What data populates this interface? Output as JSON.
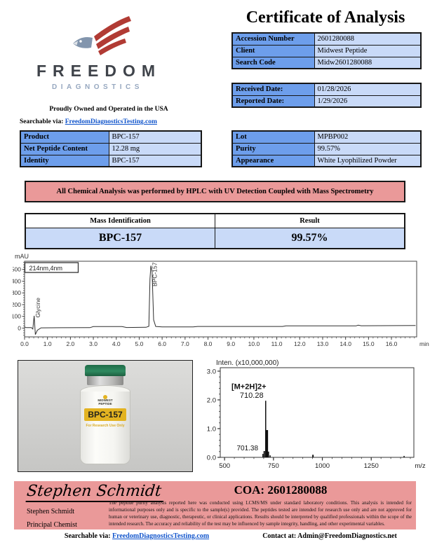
{
  "document": {
    "title": "Certificate of Analysis"
  },
  "header": {
    "brand": {
      "line1": "FREEDOM",
      "line2": "DIAGNOSTICS",
      "tagline": "Proudly Owned and Operated in the USA",
      "searchable_label": "Searchable via:",
      "searchable_link": "FreedomDiagnosticsTesting.com"
    }
  },
  "info_tables": {
    "accession": [
      {
        "label": "Accession Number",
        "value": "2601280088"
      },
      {
        "label": "Client",
        "value": "Midwest Peptide"
      },
      {
        "label": "Search Code",
        "value": "Midw2601280088"
      }
    ],
    "dates": [
      {
        "label": "Received Date:",
        "value": "01/28/2026"
      },
      {
        "label": "Reported Date:",
        "value": "1/29/2026"
      }
    ],
    "product": [
      {
        "label": "Product",
        "value": "BPC-157"
      },
      {
        "label": "Net Peptide Content",
        "value": "12.28 mg"
      },
      {
        "label": "Identity",
        "value": "BPC-157"
      }
    ],
    "lot": [
      {
        "label": "Lot",
        "value": "MPBP002"
      },
      {
        "label": "Purity",
        "value": "99.57%"
      },
      {
        "label": "Appearance",
        "value": "White Lyophilized Powder"
      }
    ]
  },
  "banner": {
    "text": "All Chemical Analysis was performed by HPLC with UV Detection Coupled with Mass Spectrometry"
  },
  "mass_table": {
    "col1_header": "Mass Identification",
    "col2_header": "Result",
    "row": {
      "identification": "BPC-157",
      "result": "99.57%"
    }
  },
  "chart_data": [
    {
      "type": "line",
      "name": "hplc-chromatogram",
      "detector_label": "214nm,4nm",
      "xlabel": "min",
      "ylabel": "mAU",
      "xlim": [
        0,
        17.1
      ],
      "ylim": [
        -75,
        570
      ],
      "x_major": 1,
      "x_minor": 0.2,
      "x_major_max": 16,
      "y_major": 100,
      "y_minor": 20,
      "y_label_min": 0,
      "y_label_max": 500,
      "trace": [
        [
          0,
          10
        ],
        [
          0.08,
          4
        ],
        [
          0.3,
          4
        ],
        [
          0.36,
          -8
        ],
        [
          0.42,
          105
        ],
        [
          0.47,
          -55
        ],
        [
          0.56,
          -18
        ],
        [
          0.72,
          2
        ],
        [
          1.6,
          3
        ],
        [
          2.85,
          4
        ],
        [
          3.0,
          13
        ],
        [
          4.25,
          13
        ],
        [
          4.45,
          5
        ],
        [
          5.3,
          7
        ],
        [
          5.42,
          15
        ],
        [
          5.47,
          420
        ],
        [
          5.51,
          532
        ],
        [
          5.56,
          480
        ],
        [
          5.63,
          70
        ],
        [
          5.72,
          14
        ],
        [
          6.0,
          10
        ],
        [
          7.35,
          10
        ],
        [
          7.55,
          14
        ],
        [
          9.5,
          14
        ],
        [
          11.25,
          14
        ],
        [
          11.4,
          19
        ],
        [
          14.45,
          19
        ],
        [
          14.55,
          25
        ],
        [
          14.68,
          20
        ],
        [
          17.05,
          22
        ]
      ],
      "peaks": [
        {
          "label": "Glycine",
          "rt": 0.42,
          "apex_mau": 105,
          "label_y_mau": 90
        },
        {
          "label": "BPC-157",
          "rt": 5.51,
          "apex_mau": 532,
          "label_y_mau": 355
        }
      ]
    },
    {
      "type": "stick",
      "name": "mass-spectrum",
      "title": "Inten. (x10,000,000)",
      "xlabel": "m/z",
      "xlim": [
        478,
        1468
      ],
      "ylim": [
        0,
        3.12
      ],
      "x_ticks": [
        500,
        750,
        1000,
        1250
      ],
      "x_minor": 50,
      "y_major": 1,
      "y_minor": 0.2,
      "peaks": [
        {
          "mz": 696,
          "intensity": 0.12,
          "w": 1.5
        },
        {
          "mz": 703,
          "intensity": 0.22,
          "w": 2
        },
        {
          "mz": 710.28,
          "intensity": 1.97,
          "w": 1.5
        },
        {
          "mz": 717,
          "intensity": 0.95,
          "w": 3
        },
        {
          "mz": 724,
          "intensity": 0.2,
          "w": 2
        },
        {
          "mz": 733,
          "intensity": 0.07,
          "w": 1.5
        },
        {
          "mz": 952,
          "intensity": 0.09,
          "w": 2
        },
        {
          "mz": 1418,
          "intensity": 0.05,
          "w": 1.5
        }
      ],
      "annotations": [
        {
          "text": "[M+2H]2+",
          "mz": 710.28,
          "at_intensity": 2.38,
          "dx": -24,
          "bold": true,
          "size": 11
        },
        {
          "text": "710.28",
          "mz": 710.28,
          "at_intensity": 2.07,
          "dx": -20,
          "bold": false,
          "size": 11
        },
        {
          "text": "701.38",
          "mz": 710.28,
          "at_intensity": 0.24,
          "dx": -26,
          "bold": false,
          "size": 10
        }
      ]
    }
  ],
  "vial": {
    "brand_top": "MIDWEST",
    "brand_bottom": "PEPTIDE",
    "product": "BPC-157",
    "subtext": "For Research Use Only"
  },
  "signature_block": {
    "signature": "Stephen Schmidt",
    "name": "Stephen Schmidt",
    "role": "Principal Chemist",
    "coa": "COA: 2601280088",
    "disclaimer": "The peptide purity analysis reported here was conducted using LCMS/MS under standard laboratory conditions. This analysis is intended for informational purposes only and is specific to the sample(s) provided. The peptides tested are intended for research use only and are not approved for human or veterinary use, diagnostic, therapeutic, or clinical applications. Results should be interpreted by qualified professionals within the scope of the intended research. The accuracy and reliability of the test may be influenced by sample integrity, handling, and other experimental variables."
  },
  "footer": {
    "searchable_label": "Searchable via:",
    "searchable_link": "FreedomDiagnosticsTesting.com",
    "contact": "Contact at: Admin@FreedomDiagnostics.net"
  },
  "icons": {
    "logo": "eagle-wing-logo"
  },
  "colors": {
    "table_label_bg": "#6d9eeb",
    "table_value_bg": "#c9daf8",
    "banner_bg": "#ea9999",
    "signature_bg": "#ea9999",
    "link_blue": "#1155cc",
    "logo_red": "#b13b34",
    "logo_gray_blue": "#8295ad",
    "logo_text_dark": "#3f434a",
    "logo_text_blue": "#97a8c0",
    "vial_cap_green": "#2a7d52",
    "vial_label_yellow": "#e3b321"
  }
}
